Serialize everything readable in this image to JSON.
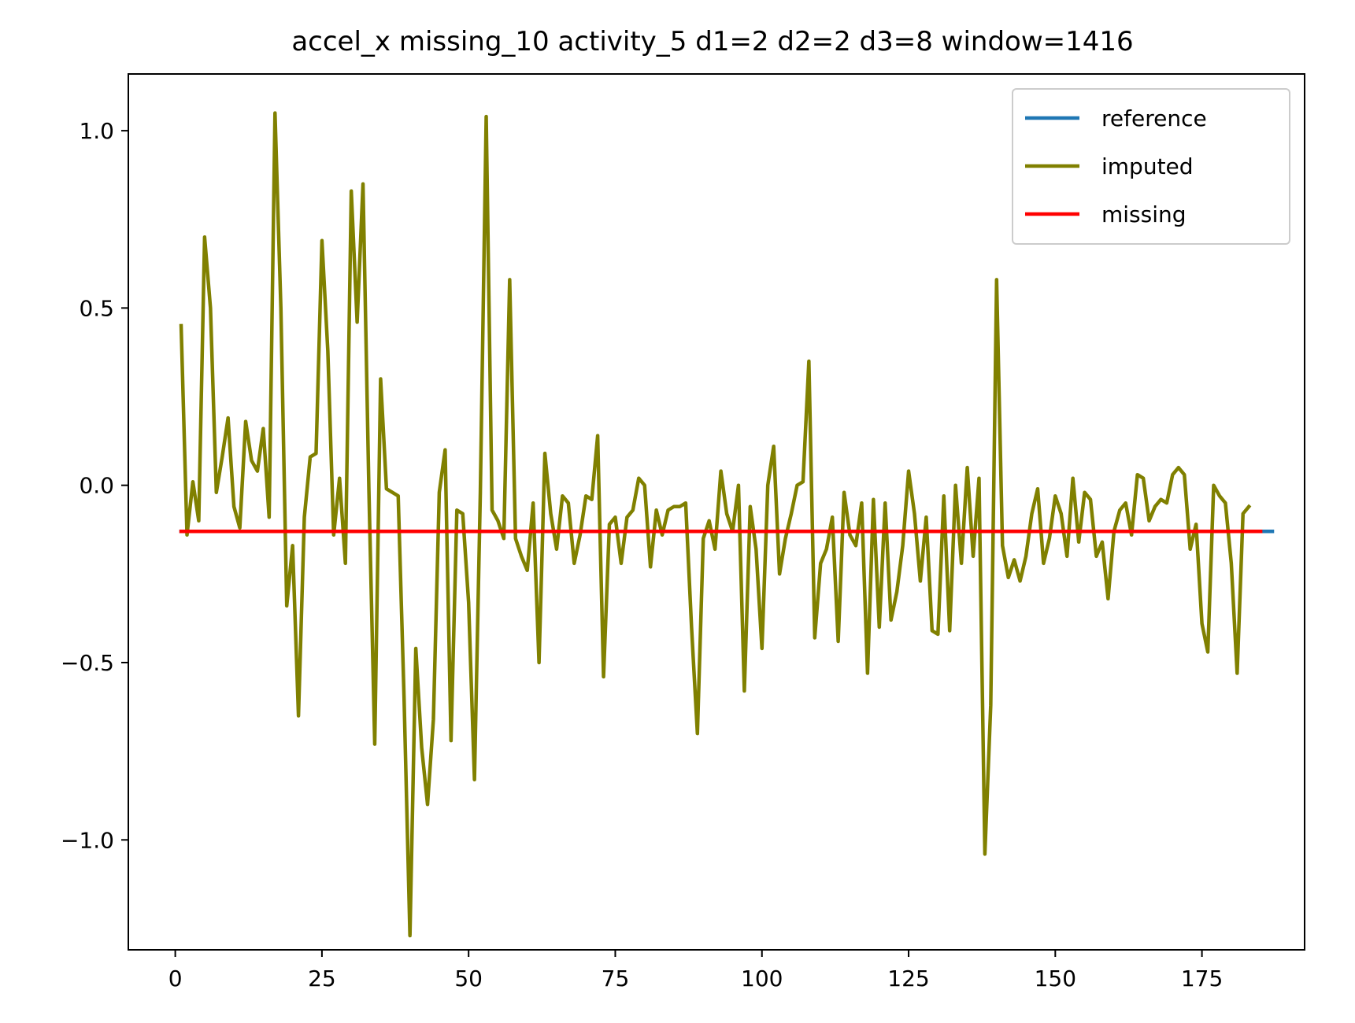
{
  "chart_data": {
    "type": "line",
    "title": "accel_x missing_10 activity_5 d1=2 d2=2 d3=8 window=1416",
    "xlabel": "",
    "ylabel": "",
    "xlim": [
      -8,
      192.5
    ],
    "ylim": [
      -1.31,
      1.16
    ],
    "x_ticks": [
      0,
      25,
      50,
      75,
      100,
      125,
      150,
      175
    ],
    "x_tick_labels": [
      "0",
      "25",
      "50",
      "75",
      "100",
      "125",
      "150",
      "175"
    ],
    "y_ticks": [
      1.0,
      0.5,
      0.0,
      -0.5,
      -1.0
    ],
    "y_tick_labels": [
      "1.0",
      "0.5",
      "0.0",
      "−0.5",
      "−1.0"
    ],
    "legend_position": "top-right",
    "grid": false,
    "series": [
      {
        "name": "reference",
        "color": "#1f77b4",
        "x_start": 1,
        "values": [
          -0.13,
          -0.13,
          -0.13,
          -0.13,
          -0.13,
          -0.13,
          -0.13,
          -0.13,
          -0.13,
          -0.13,
          -0.13,
          -0.13,
          -0.13,
          -0.13,
          -0.13,
          -0.13,
          -0.13,
          -0.13,
          -0.13,
          -0.13,
          -0.13,
          -0.13,
          -0.13,
          -0.13,
          -0.13,
          -0.13,
          -0.13,
          -0.13,
          -0.13,
          -0.13,
          -0.13,
          -0.13,
          -0.13,
          -0.13,
          -0.13,
          -0.13,
          -0.13,
          -0.13,
          -0.13,
          -0.13,
          -0.13,
          -0.13,
          -0.13,
          -0.13,
          -0.13,
          -0.13,
          -0.13,
          -0.13,
          -0.13,
          -0.13,
          -0.13,
          -0.13,
          -0.13,
          -0.13,
          -0.13,
          -0.13,
          -0.13,
          -0.13,
          -0.13,
          -0.13,
          -0.13,
          -0.13,
          -0.13,
          -0.13,
          -0.13,
          -0.13,
          -0.13,
          -0.13,
          -0.13,
          -0.13,
          -0.13,
          -0.13,
          -0.13,
          -0.13,
          -0.13,
          -0.13,
          -0.13,
          -0.13,
          -0.13,
          -0.13,
          -0.13,
          -0.13,
          -0.13,
          -0.13,
          -0.13,
          -0.13,
          -0.13,
          -0.13,
          -0.13,
          -0.13,
          -0.13,
          -0.13,
          -0.13,
          -0.13,
          -0.13,
          -0.13,
          -0.13,
          -0.13,
          -0.13,
          -0.13,
          -0.13,
          -0.13,
          -0.13,
          -0.13,
          -0.13,
          -0.13,
          -0.13,
          -0.13,
          -0.13,
          -0.13,
          -0.13,
          -0.13,
          -0.13,
          -0.13,
          -0.13,
          -0.13,
          -0.13,
          -0.13,
          -0.13,
          -0.13,
          -0.13,
          -0.13,
          -0.13,
          -0.13,
          -0.13,
          -0.13,
          -0.13,
          -0.13,
          -0.13,
          -0.13,
          -0.13,
          -0.13,
          -0.13,
          -0.13,
          -0.13,
          -0.13,
          -0.13,
          -0.13,
          -0.13,
          -0.13,
          -0.13,
          -0.13,
          -0.13,
          -0.13,
          -0.13,
          -0.13,
          -0.13,
          -0.13,
          -0.13,
          -0.13,
          -0.13,
          -0.13,
          -0.13,
          -0.13,
          -0.13,
          -0.13,
          -0.13,
          -0.13,
          -0.13,
          -0.13,
          -0.13,
          -0.13,
          -0.13,
          -0.13,
          -0.13,
          -0.13,
          -0.13,
          -0.13,
          -0.13,
          -0.13,
          -0.13,
          -0.13,
          -0.13,
          -0.13,
          -0.13,
          -0.13,
          -0.13,
          -0.13,
          -0.13,
          -0.13,
          -0.13,
          -0.13,
          -0.13,
          -0.13,
          -0.13,
          -0.13,
          -0.13
        ]
      },
      {
        "name": "imputed",
        "color": "#808000",
        "x_start": 1,
        "values": [
          0.45,
          -0.14,
          0.01,
          -0.1,
          0.7,
          0.5,
          -0.02,
          0.08,
          0.19,
          -0.06,
          -0.12,
          0.18,
          0.07,
          0.04,
          0.16,
          -0.09,
          1.05,
          0.5,
          -0.34,
          -0.17,
          -0.65,
          -0.09,
          0.08,
          0.09,
          0.69,
          0.38,
          -0.14,
          0.02,
          -0.22,
          0.83,
          0.46,
          0.85,
          -0.01,
          -0.73,
          0.3,
          -0.01,
          -0.02,
          -0.03,
          -0.6,
          -1.27,
          -0.46,
          -0.74,
          -0.9,
          -0.66,
          -0.02,
          0.1,
          -0.72,
          -0.07,
          -0.08,
          -0.33,
          -0.83,
          -0.02,
          1.04,
          -0.07,
          -0.1,
          -0.15,
          0.58,
          -0.15,
          -0.2,
          -0.24,
          -0.05,
          -0.5,
          0.09,
          -0.08,
          -0.18,
          -0.03,
          -0.05,
          -0.22,
          -0.14,
          -0.03,
          -0.04,
          0.14,
          -0.54,
          -0.11,
          -0.09,
          -0.22,
          -0.09,
          -0.07,
          0.02,
          0.0,
          -0.23,
          -0.07,
          -0.14,
          -0.07,
          -0.06,
          -0.06,
          -0.05,
          -0.4,
          -0.7,
          -0.15,
          -0.1,
          -0.18,
          0.04,
          -0.08,
          -0.13,
          0.0,
          -0.58,
          -0.06,
          -0.18,
          -0.46,
          0.0,
          0.11,
          -0.25,
          -0.15,
          -0.08,
          0.0,
          0.01,
          0.35,
          -0.43,
          -0.22,
          -0.18,
          -0.09,
          -0.44,
          -0.02,
          -0.14,
          -0.17,
          -0.05,
          -0.53,
          -0.04,
          -0.4,
          -0.05,
          -0.38,
          -0.3,
          -0.17,
          0.04,
          -0.08,
          -0.27,
          -0.09,
          -0.41,
          -0.42,
          -0.03,
          -0.41,
          0.0,
          -0.22,
          0.05,
          -0.2,
          0.02,
          -1.04,
          -0.62,
          0.58,
          -0.17,
          -0.26,
          -0.21,
          -0.27,
          -0.2,
          -0.08,
          -0.01,
          -0.22,
          -0.15,
          -0.03,
          -0.08,
          -0.2,
          0.02,
          -0.16,
          -0.02,
          -0.04,
          -0.2,
          -0.16,
          -0.32,
          -0.13,
          -0.07,
          -0.05,
          -0.14,
          0.03,
          0.02,
          -0.1,
          -0.06,
          -0.04,
          -0.05,
          0.03,
          0.05,
          0.03,
          -0.18,
          -0.11,
          -0.39,
          -0.47,
          0.0,
          -0.03,
          -0.05,
          -0.22,
          -0.53,
          -0.08,
          -0.06
        ]
      },
      {
        "name": "missing",
        "color": "#ff0000",
        "x_start": 1,
        "values": [
          -0.13,
          -0.13,
          -0.13,
          -0.13,
          -0.13,
          -0.13,
          -0.13,
          -0.13,
          -0.13,
          -0.13,
          -0.13,
          -0.13,
          -0.13,
          -0.13,
          -0.13,
          -0.13,
          -0.13,
          -0.13,
          -0.13,
          -0.13,
          -0.13,
          -0.13,
          -0.13,
          -0.13,
          -0.13,
          -0.13,
          -0.13,
          -0.13,
          -0.13,
          -0.13,
          -0.13,
          -0.13,
          -0.13,
          -0.13,
          -0.13,
          -0.13,
          -0.13,
          -0.13,
          -0.13,
          -0.13,
          -0.13,
          -0.13,
          -0.13,
          -0.13,
          -0.13,
          -0.13,
          -0.13,
          -0.13,
          -0.13,
          -0.13,
          -0.13,
          -0.13,
          -0.13,
          -0.13,
          -0.13,
          -0.13,
          -0.13,
          -0.13,
          -0.13,
          -0.13,
          -0.13,
          -0.13,
          -0.13,
          -0.13,
          -0.13,
          -0.13,
          -0.13,
          -0.13,
          -0.13,
          -0.13,
          -0.13,
          -0.13,
          -0.13,
          -0.13,
          -0.13,
          -0.13,
          -0.13,
          -0.13,
          -0.13,
          -0.13,
          -0.13,
          -0.13,
          -0.13,
          -0.13,
          -0.13,
          -0.13,
          -0.13,
          -0.13,
          -0.13,
          -0.13,
          -0.13,
          -0.13,
          -0.13,
          -0.13,
          -0.13,
          -0.13,
          -0.13,
          -0.13,
          -0.13,
          -0.13,
          -0.13,
          -0.13,
          -0.13,
          -0.13,
          -0.13,
          -0.13,
          -0.13,
          -0.13,
          -0.13,
          -0.13,
          -0.13,
          -0.13,
          -0.13,
          -0.13,
          -0.13,
          -0.13,
          -0.13,
          -0.13,
          -0.13,
          -0.13,
          -0.13,
          -0.13,
          -0.13,
          -0.13,
          -0.13,
          -0.13,
          -0.13,
          -0.13,
          -0.13,
          -0.13,
          -0.13,
          -0.13,
          -0.13,
          -0.13,
          -0.13,
          -0.13,
          -0.13,
          -0.13,
          -0.13,
          -0.13,
          -0.13,
          -0.13,
          -0.13,
          -0.13,
          -0.13,
          -0.13,
          -0.13,
          -0.13,
          -0.13,
          -0.13,
          -0.13,
          -0.13,
          -0.13,
          -0.13,
          -0.13,
          -0.13,
          -0.13,
          -0.13,
          -0.13,
          -0.13,
          -0.13,
          -0.13,
          -0.13,
          -0.13,
          -0.13,
          -0.13,
          -0.13,
          -0.13,
          -0.13,
          -0.13,
          -0.13,
          -0.13,
          -0.13,
          -0.13,
          -0.13,
          -0.13,
          -0.13,
          -0.13,
          -0.13,
          -0.13,
          -0.13,
          -0.13,
          -0.13,
          -0.13,
          -0.13
        ]
      }
    ]
  }
}
